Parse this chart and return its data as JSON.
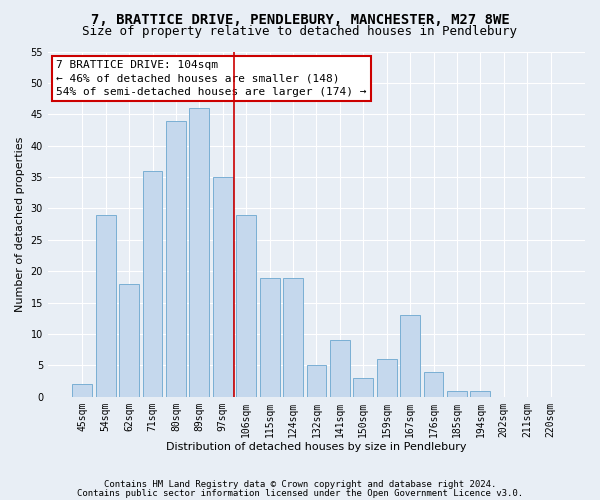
{
  "title1": "7, BRATTICE DRIVE, PENDLEBURY, MANCHESTER, M27 8WE",
  "title2": "Size of property relative to detached houses in Pendlebury",
  "xlabel": "Distribution of detached houses by size in Pendlebury",
  "ylabel": "Number of detached properties",
  "categories": [
    "45sqm",
    "54sqm",
    "62sqm",
    "71sqm",
    "80sqm",
    "89sqm",
    "97sqm",
    "106sqm",
    "115sqm",
    "124sqm",
    "132sqm",
    "141sqm",
    "150sqm",
    "159sqm",
    "167sqm",
    "176sqm",
    "185sqm",
    "194sqm",
    "202sqm",
    "211sqm",
    "220sqm"
  ],
  "values": [
    2,
    29,
    18,
    36,
    44,
    46,
    35,
    29,
    19,
    19,
    5,
    9,
    3,
    6,
    13,
    4,
    1,
    1,
    0,
    0,
    0
  ],
  "bar_color": "#c5d8ed",
  "bar_edge_color": "#7aafd4",
  "annotation_text": "7 BRATTICE DRIVE: 104sqm\n← 46% of detached houses are smaller (148)\n54% of semi-detached houses are larger (174) →",
  "annotation_box_color": "#ffffff",
  "annotation_box_edge_color": "#cc0000",
  "vline_color": "#cc0000",
  "vline_x_index": 7,
  "ylim": [
    0,
    55
  ],
  "yticks": [
    0,
    5,
    10,
    15,
    20,
    25,
    30,
    35,
    40,
    45,
    50,
    55
  ],
  "footer1": "Contains HM Land Registry data © Crown copyright and database right 2024.",
  "footer2": "Contains public sector information licensed under the Open Government Licence v3.0.",
  "bg_color": "#e8eef5",
  "plot_bg_color": "#e8eef5",
  "grid_color": "#ffffff",
  "title1_fontsize": 10,
  "title2_fontsize": 9,
  "axis_label_fontsize": 8,
  "tick_fontsize": 7,
  "annotation_fontsize": 8,
  "footer_fontsize": 6.5
}
